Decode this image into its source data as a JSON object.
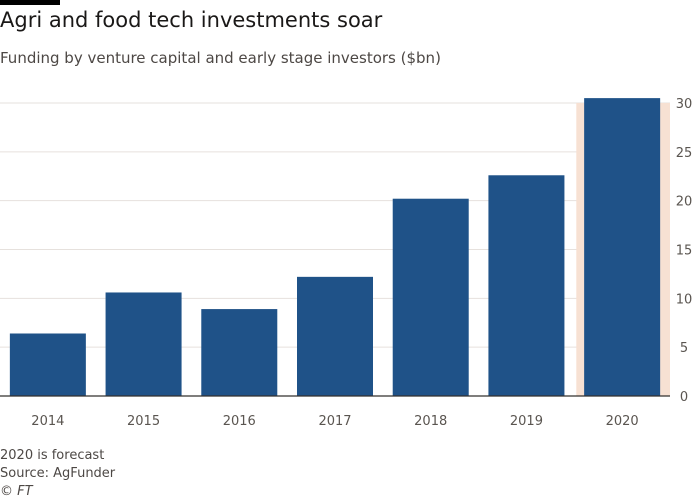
{
  "header": {
    "title": "Agri and food tech investments soar",
    "subtitle": "Funding by venture capital and early stage investors ($bn)"
  },
  "footer": {
    "note": "2020 is forecast",
    "source": "Source: AgFunder",
    "credit": "© FT"
  },
  "colors": {
    "bar": "#1f5288",
    "highlight": "#f7e1d3",
    "grid": "#e6e1dd",
    "axis": "#33302e"
  },
  "chart_data": {
    "type": "bar",
    "title": "Agri and food tech investments soar",
    "subtitle": "Funding by venture capital and early stage investors ($bn)",
    "categories": [
      "2014",
      "2015",
      "2016",
      "2017",
      "2018",
      "2019",
      "2020"
    ],
    "values": [
      6.4,
      10.6,
      8.9,
      12.2,
      20.2,
      22.6,
      30.5
    ],
    "ylim": [
      0,
      30
    ],
    "yticks": [
      0,
      5,
      10,
      15,
      20,
      25,
      30
    ],
    "y_axis_side": "right",
    "grid": true,
    "highlighted_category": "2020",
    "xlabel": "",
    "ylabel": ""
  }
}
